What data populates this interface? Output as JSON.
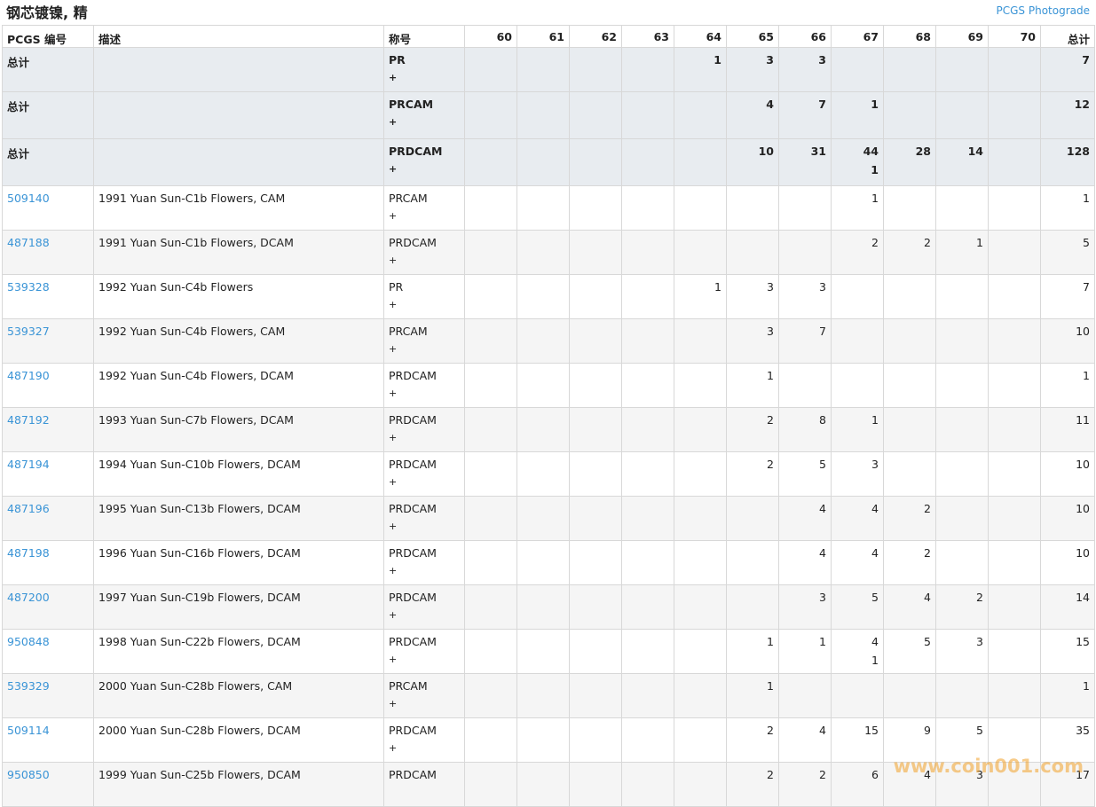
{
  "header": {
    "title": "钢芯镀镍, 精",
    "link": "PCGS Photograde"
  },
  "table": {
    "columns": [
      "PCGS 编号",
      "描述",
      "称号",
      "60",
      "61",
      "62",
      "63",
      "64",
      "65",
      "66",
      "67",
      "68",
      "69",
      "70",
      "总计"
    ],
    "summary_rows": [
      [
        [
          "总计"
        ],
        [],
        [
          "PR",
          "+"
        ],
        [],
        [],
        [],
        [],
        [
          "1"
        ],
        [
          "3"
        ],
        [
          "3"
        ],
        [],
        [],
        [],
        [],
        [
          "7"
        ]
      ],
      [
        [
          "总计"
        ],
        [],
        [
          "PRCAM",
          "+"
        ],
        [],
        [],
        [],
        [],
        [],
        [
          "4"
        ],
        [
          "7"
        ],
        [
          "1"
        ],
        [],
        [],
        [],
        [
          "12"
        ]
      ],
      [
        [
          "总计"
        ],
        [],
        [
          "PRDCAM",
          "+"
        ],
        [],
        [],
        [],
        [],
        [],
        [
          "10"
        ],
        [
          "31"
        ],
        [
          "44",
          "1"
        ],
        [
          "28"
        ],
        [
          "14"
        ],
        [],
        [
          "128"
        ]
      ]
    ],
    "rows": [
      [
        [
          "509140"
        ],
        [
          "1991 Yuan Sun-C1b Flowers, CAM"
        ],
        [
          "PRCAM",
          "+"
        ],
        [],
        [],
        [],
        [],
        [],
        [],
        [],
        [
          "1"
        ],
        [],
        [],
        [],
        [
          "1"
        ]
      ],
      [
        [
          "487188"
        ],
        [
          "1991 Yuan Sun-C1b Flowers, DCAM"
        ],
        [
          "PRDCAM",
          "+"
        ],
        [],
        [],
        [],
        [],
        [],
        [],
        [],
        [
          "2"
        ],
        [
          "2"
        ],
        [
          "1"
        ],
        [],
        [
          "5"
        ]
      ],
      [
        [
          "539328"
        ],
        [
          "1992 Yuan Sun-C4b Flowers"
        ],
        [
          "PR",
          "+"
        ],
        [],
        [],
        [],
        [],
        [
          "1"
        ],
        [
          "3"
        ],
        [
          "3"
        ],
        [],
        [],
        [],
        [],
        [
          "7"
        ]
      ],
      [
        [
          "539327"
        ],
        [
          "1992 Yuan Sun-C4b Flowers, CAM"
        ],
        [
          "PRCAM",
          "+"
        ],
        [],
        [],
        [],
        [],
        [],
        [
          "3"
        ],
        [
          "7"
        ],
        [],
        [],
        [],
        [],
        [
          "10"
        ]
      ],
      [
        [
          "487190"
        ],
        [
          "1992 Yuan Sun-C4b Flowers, DCAM"
        ],
        [
          "PRDCAM",
          "+"
        ],
        [],
        [],
        [],
        [],
        [],
        [
          "1"
        ],
        [],
        [],
        [],
        [],
        [],
        [
          "1"
        ]
      ],
      [
        [
          "487192"
        ],
        [
          "1993 Yuan Sun-C7b Flowers, DCAM"
        ],
        [
          "PRDCAM",
          "+"
        ],
        [],
        [],
        [],
        [],
        [],
        [
          "2"
        ],
        [
          "8"
        ],
        [
          "1"
        ],
        [],
        [],
        [],
        [
          "11"
        ]
      ],
      [
        [
          "487194"
        ],
        [
          "1994 Yuan Sun-C10b Flowers, DCAM"
        ],
        [
          "PRDCAM",
          "+"
        ],
        [],
        [],
        [],
        [],
        [],
        [
          "2"
        ],
        [
          "5"
        ],
        [
          "3"
        ],
        [],
        [],
        [],
        [
          "10"
        ]
      ],
      [
        [
          "487196"
        ],
        [
          "1995 Yuan Sun-C13b Flowers, DCAM"
        ],
        [
          "PRDCAM",
          "+"
        ],
        [],
        [],
        [],
        [],
        [],
        [],
        [
          "4"
        ],
        [
          "4"
        ],
        [
          "2"
        ],
        [],
        [],
        [
          "10"
        ]
      ],
      [
        [
          "487198"
        ],
        [
          "1996 Yuan Sun-C16b Flowers, DCAM"
        ],
        [
          "PRDCAM",
          "+"
        ],
        [],
        [],
        [],
        [],
        [],
        [],
        [
          "4"
        ],
        [
          "4"
        ],
        [
          "2"
        ],
        [],
        [],
        [
          "10"
        ]
      ],
      [
        [
          "487200"
        ],
        [
          "1997 Yuan Sun-C19b Flowers, DCAM"
        ],
        [
          "PRDCAM",
          "+"
        ],
        [],
        [],
        [],
        [],
        [],
        [],
        [
          "3"
        ],
        [
          "5"
        ],
        [
          "4"
        ],
        [
          "2"
        ],
        [],
        [
          "14"
        ]
      ],
      [
        [
          "950848"
        ],
        [
          "1998 Yuan Sun-C22b Flowers, DCAM"
        ],
        [
          "PRDCAM",
          "+"
        ],
        [],
        [],
        [],
        [],
        [],
        [
          "1"
        ],
        [
          "1"
        ],
        [
          "4",
          "1"
        ],
        [
          "5"
        ],
        [
          "3"
        ],
        [],
        [
          "15"
        ]
      ],
      [
        [
          "539329"
        ],
        [
          "2000 Yuan Sun-C28b Flowers, CAM"
        ],
        [
          "PRCAM",
          "+"
        ],
        [],
        [],
        [],
        [],
        [],
        [
          "1"
        ],
        [],
        [],
        [],
        [],
        [],
        [
          "1"
        ]
      ],
      [
        [
          "509114"
        ],
        [
          "2000 Yuan Sun-C28b Flowers, DCAM"
        ],
        [
          "PRDCAM",
          "+"
        ],
        [],
        [],
        [],
        [],
        [],
        [
          "2"
        ],
        [
          "4"
        ],
        [
          "15"
        ],
        [
          "9"
        ],
        [
          "5"
        ],
        [],
        [
          "35"
        ]
      ],
      [
        [
          "950850"
        ],
        [
          "1999 Yuan Sun-C25b Flowers, DCAM"
        ],
        [
          "PRDCAM"
        ],
        [],
        [],
        [],
        [],
        [],
        [
          "2"
        ],
        [
          "2"
        ],
        [
          "6"
        ],
        [
          "4"
        ],
        [
          "3"
        ],
        [],
        [
          "17"
        ]
      ]
    ]
  },
  "watermark": "www.coin001.com"
}
